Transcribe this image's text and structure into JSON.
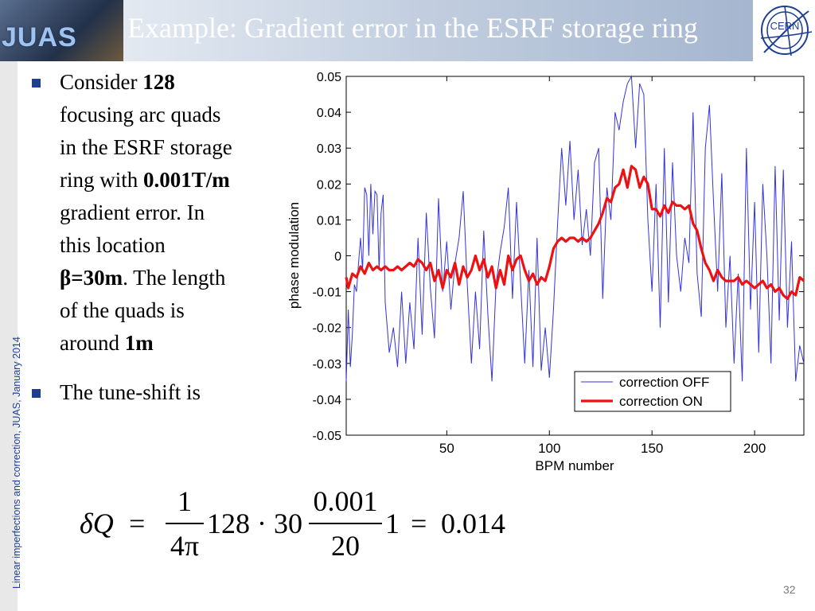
{
  "header": {
    "title": "Example: Gradient error in the ESRF storage ring",
    "logo_left_text": "JUAS",
    "logo_right_text": "CERN"
  },
  "sidebar": {
    "vertical_text": "Linear imperfections and correction, JUAS, January 2014"
  },
  "bullets": [
    {
      "lines": [
        [
          {
            "t": "Consider "
          },
          {
            "t": "128",
            "b": true
          }
        ],
        [
          {
            "t": "focusing arc quads"
          }
        ],
        [
          {
            "t": "in the ESRF storage"
          }
        ],
        [
          {
            "t": "ring with "
          },
          {
            "t": "0.001T/m",
            "b": true
          }
        ],
        [
          {
            "t": "gradient error. In"
          }
        ],
        [
          {
            "t": "this location"
          }
        ],
        [
          {
            "t": "β=",
            "b": true
          },
          {
            "t": "30m",
            "b": true
          },
          {
            "t": ". The length"
          }
        ],
        [
          {
            "t": "of the quads is"
          }
        ],
        [
          {
            "t": "around "
          },
          {
            "t": "1m",
            "b": true
          }
        ]
      ]
    },
    {
      "lines": [
        [
          {
            "t": "The tune-shift is"
          }
        ]
      ]
    }
  ],
  "formula": {
    "lhs": "δQ",
    "eq": "=",
    "frac1_num": "1",
    "frac1_den": "4π",
    "mid": "128 · 30",
    "frac2_num": "0.001",
    "frac2_den": "20",
    "tail": "1",
    "eq2": "=",
    "result": "0.014"
  },
  "page_number": "32",
  "colors": {
    "correction_off": "#3333dd",
    "correction_on": "#ee1111",
    "accent": "#1f3f91"
  },
  "chart_data": {
    "type": "line",
    "xlabel": "BPM number",
    "ylabel": "phase modulation",
    "xlim": [
      1,
      224
    ],
    "ylim": [
      -0.05,
      0.05
    ],
    "xticks": [
      50,
      100,
      150,
      200
    ],
    "yticks": [
      -0.05,
      -0.04,
      -0.03,
      -0.02,
      -0.01,
      0,
      0.01,
      0.02,
      0.03,
      0.04,
      0.05
    ],
    "ytick_labels": [
      "-0.05",
      "-0.04",
      "-0.03",
      "-0.02",
      "-0.01",
      "0",
      "0.01",
      "0.02",
      "0.03",
      "0.04",
      "0.05"
    ],
    "legend": {
      "position": "bottom-right"
    },
    "series": [
      {
        "name": "correction OFF",
        "x": [
          1,
          2,
          3,
          4,
          5,
          6,
          7,
          8,
          9,
          10,
          11,
          12,
          13,
          14,
          15,
          16,
          17,
          18,
          19,
          20,
          22,
          24,
          26,
          28,
          30,
          32,
          34,
          36,
          38,
          40,
          42,
          44,
          46,
          48,
          50,
          52,
          54,
          56,
          58,
          60,
          62,
          64,
          66,
          68,
          70,
          72,
          74,
          76,
          78,
          80,
          82,
          84,
          86,
          88,
          90,
          92,
          94,
          96,
          98,
          100,
          102,
          104,
          106,
          108,
          110,
          112,
          114,
          116,
          118,
          120,
          122,
          124,
          126,
          128,
          130,
          132,
          134,
          136,
          138,
          140,
          142,
          144,
          146,
          148,
          150,
          152,
          154,
          156,
          158,
          160,
          162,
          164,
          166,
          168,
          170,
          172,
          174,
          176,
          178,
          180,
          182,
          184,
          186,
          188,
          190,
          192,
          194,
          196,
          198,
          200,
          202,
          204,
          206,
          208,
          210,
          212,
          214,
          216,
          218,
          220,
          222,
          224
        ],
        "y": [
          -0.035,
          -0.015,
          -0.031,
          -0.022,
          -0.008,
          -0.01,
          -0.002,
          0.005,
          -0.004,
          0.019,
          0.017,
          0.0,
          0.02,
          0.006,
          0.018,
          0.017,
          -0.004,
          0.012,
          0.017,
          -0.013,
          -0.027,
          -0.02,
          -0.031,
          -0.01,
          -0.03,
          -0.013,
          -0.026,
          0.005,
          -0.022,
          0.012,
          -0.009,
          -0.023,
          0.016,
          -0.01,
          0.004,
          -0.015,
          -0.002,
          0.005,
          0.018,
          -0.008,
          -0.03,
          -0.01,
          -0.026,
          0.007,
          -0.016,
          -0.035,
          -0.008,
          0.001,
          0.008,
          0.019,
          -0.012,
          0.015,
          -0.008,
          -0.03,
          -0.004,
          -0.031,
          0.005,
          -0.032,
          -0.02,
          -0.034,
          -0.015,
          0.009,
          0.03,
          0.014,
          0.032,
          0.01,
          0.024,
          0.003,
          0.013,
          0.0,
          0.026,
          0.03,
          -0.012,
          0.019,
          0.01,
          0.04,
          0.035,
          0.043,
          0.048,
          0.05,
          0.03,
          0.048,
          0.045,
          0.01,
          -0.01,
          0.02,
          -0.02,
          0.03,
          -0.013,
          0.026,
          0.0,
          -0.01,
          0.005,
          -0.002,
          0.04,
          -0.005,
          -0.017,
          0.03,
          0.042,
          0.015,
          -0.01,
          0.023,
          -0.02,
          0.0,
          -0.03,
          -0.005,
          -0.035,
          0.03,
          -0.015,
          0.015,
          -0.027,
          0.02,
          0.0,
          -0.03,
          0.025,
          -0.018,
          0.024,
          -0.02,
          0.004,
          -0.035,
          -0.025,
          -0.03
        ]
      },
      {
        "name": "correction ON",
        "x": [
          1,
          2,
          4,
          6,
          8,
          10,
          12,
          14,
          16,
          18,
          20,
          22,
          24,
          26,
          28,
          30,
          32,
          34,
          36,
          38,
          40,
          42,
          44,
          46,
          48,
          50,
          52,
          54,
          56,
          58,
          60,
          62,
          64,
          66,
          68,
          70,
          72,
          74,
          76,
          78,
          80,
          82,
          84,
          86,
          88,
          90,
          92,
          94,
          96,
          98,
          100,
          102,
          104,
          106,
          108,
          110,
          112,
          114,
          116,
          118,
          120,
          122,
          124,
          126,
          128,
          130,
          132,
          134,
          136,
          138,
          140,
          142,
          144,
          146,
          148,
          150,
          152,
          154,
          156,
          158,
          160,
          162,
          164,
          166,
          168,
          170,
          172,
          174,
          176,
          178,
          180,
          182,
          184,
          186,
          188,
          190,
          192,
          194,
          196,
          198,
          200,
          202,
          204,
          206,
          208,
          210,
          212,
          214,
          216,
          218,
          220,
          222,
          224
        ],
        "y": [
          -0.006,
          -0.009,
          -0.005,
          -0.006,
          -0.003,
          -0.005,
          -0.002,
          -0.004,
          -0.003,
          -0.004,
          -0.003,
          -0.004,
          -0.004,
          -0.003,
          -0.004,
          -0.003,
          -0.002,
          -0.003,
          -0.001,
          -0.002,
          -0.004,
          -0.002,
          -0.007,
          -0.004,
          -0.009,
          -0.004,
          -0.006,
          -0.002,
          -0.008,
          -0.003,
          -0.006,
          -0.004,
          0.0,
          -0.004,
          -0.001,
          -0.006,
          -0.003,
          -0.009,
          -0.004,
          -0.008,
          0.0,
          -0.004,
          -0.001,
          0.0,
          -0.004,
          -0.007,
          -0.005,
          -0.008,
          -0.006,
          -0.007,
          -0.003,
          0.002,
          0.004,
          0.005,
          0.004,
          0.005,
          0.005,
          0.004,
          0.005,
          0.004,
          0.005,
          0.007,
          0.009,
          0.012,
          0.016,
          0.015,
          0.019,
          0.02,
          0.024,
          0.019,
          0.025,
          0.024,
          0.019,
          0.022,
          0.02,
          0.013,
          0.013,
          0.011,
          0.014,
          0.012,
          0.015,
          0.014,
          0.014,
          0.013,
          0.014,
          0.009,
          0.007,
          0.002,
          -0.002,
          -0.004,
          -0.007,
          -0.004,
          -0.006,
          -0.007,
          -0.007,
          -0.007,
          -0.006,
          -0.008,
          -0.007,
          -0.008,
          -0.009,
          -0.008,
          -0.007,
          -0.009,
          -0.008,
          -0.01,
          -0.009,
          -0.011,
          -0.012,
          -0.01,
          -0.011,
          -0.006,
          -0.007
        ]
      }
    ]
  }
}
